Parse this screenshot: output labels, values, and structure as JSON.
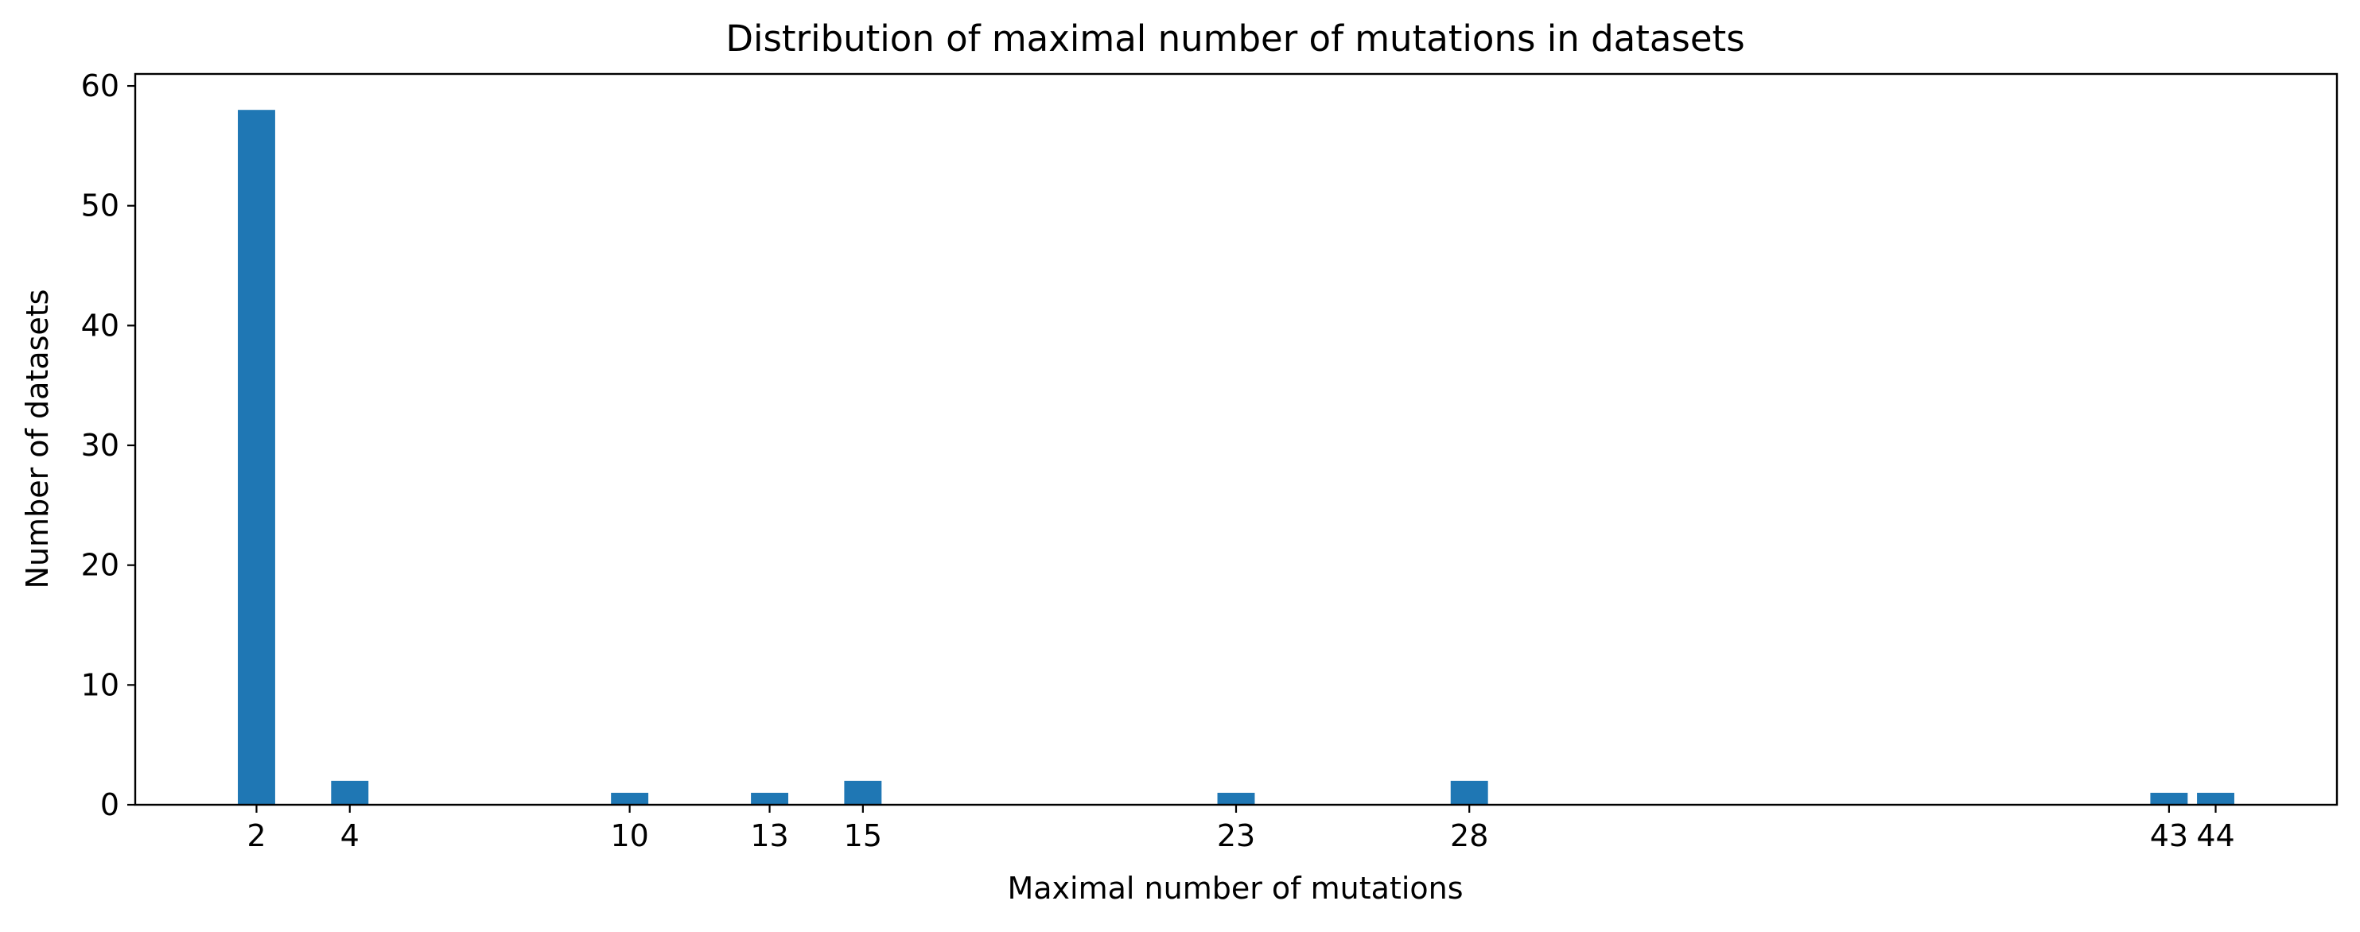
{
  "chart_data": {
    "type": "bar",
    "title": "Distribution of maximal number of mutations in datasets",
    "xlabel": "Maximal number of mutations",
    "ylabel": "Number of datasets",
    "x": [
      2,
      4,
      10,
      13,
      15,
      23,
      28,
      43,
      44
    ],
    "values": [
      58,
      2,
      1,
      1,
      2,
      1,
      2,
      1,
      1
    ],
    "xticks": [
      2,
      4,
      10,
      13,
      15,
      23,
      28,
      43,
      44
    ],
    "yticks": [
      0,
      10,
      20,
      30,
      40,
      50,
      60
    ],
    "xlim": [
      -0.6,
      46.6
    ],
    "ylim": [
      0,
      61
    ],
    "bar_width": 0.8,
    "bar_color": "#1f77b4",
    "grid": false,
    "legend": "none"
  }
}
